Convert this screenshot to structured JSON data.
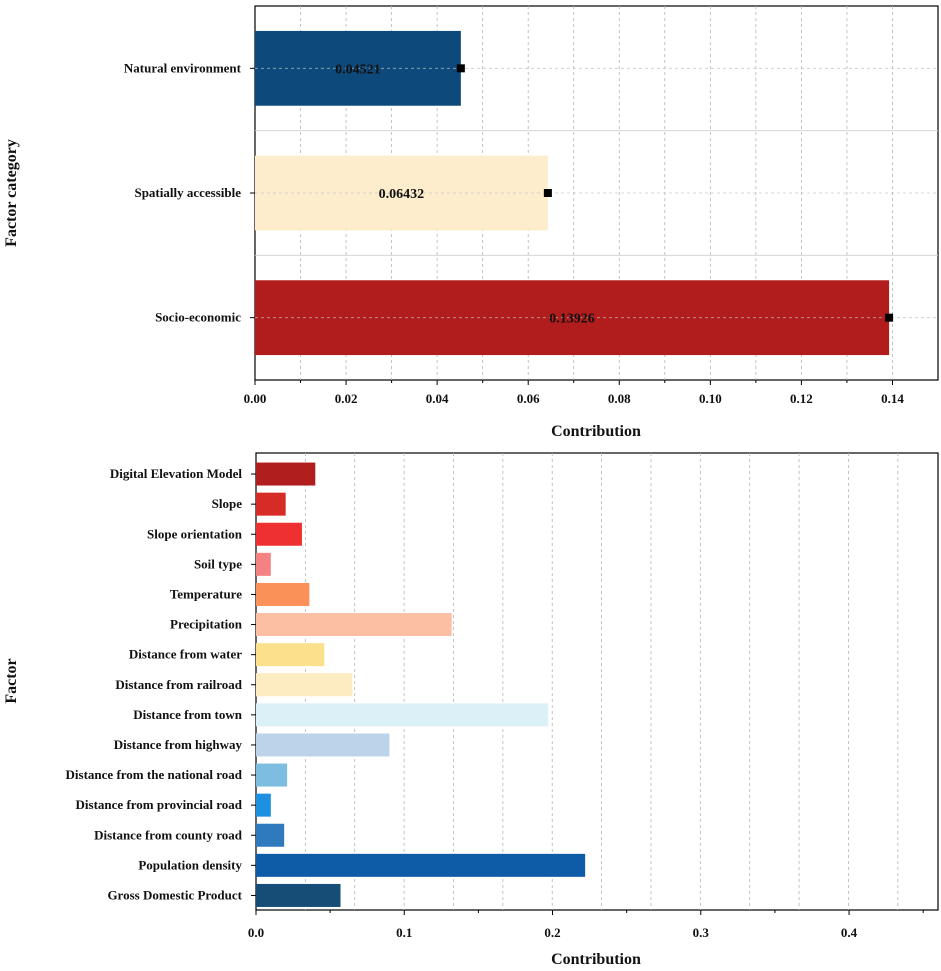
{
  "chart_data": [
    {
      "type": "bar",
      "orientation": "horizontal",
      "title": "",
      "xlabel": "Contribution",
      "ylabel": "Factor category",
      "xlim": [
        0,
        0.15
      ],
      "xticks": [
        "0.00",
        "0.02",
        "0.04",
        "0.06",
        "0.08",
        "0.10",
        "0.12",
        "0.14"
      ],
      "xtick_values": [
        0,
        0.02,
        0.04,
        0.06,
        0.08,
        0.1,
        0.12,
        0.14
      ],
      "grid": "vertical dashed",
      "categories": [
        "Natural environment",
        "Spatially accessible",
        "Socio-economic"
      ],
      "values": [
        0.04521,
        0.06432,
        0.13926
      ],
      "data_labels": [
        "0.04521",
        "0.06432",
        "0.13926"
      ],
      "colors": [
        "#0d4a7b",
        "#fdedcc",
        "#b11c1c"
      ],
      "marker": "square at bar end"
    },
    {
      "type": "bar",
      "orientation": "horizontal",
      "title": "",
      "xlabel": "Contribution",
      "ylabel": "Factor",
      "xlim": [
        0,
        0.46
      ],
      "xticks": [
        "0.0",
        "0.1",
        "0.2",
        "0.3",
        "0.4"
      ],
      "xtick_values": [
        0,
        0.1,
        0.2,
        0.3,
        0.4
      ],
      "grid": "vertical dashed",
      "categories": [
        "Digital Elevation Model",
        "Slope",
        "Slope orientation",
        "Soil type",
        "Temperature",
        "Precipitation",
        "Distance from water",
        "Distance from railroad",
        "Distance from town",
        "Distance from highway",
        "Distance from the national road",
        "Distance from provincial road",
        "Distance from county road",
        "Population density",
        "Gross Domestic Product"
      ],
      "values": [
        0.04,
        0.02,
        0.031,
        0.01,
        0.036,
        0.132,
        0.046,
        0.065,
        0.197,
        0.09,
        0.021,
        0.01,
        0.019,
        0.222,
        0.057
      ],
      "colors": [
        "#b11e1e",
        "#d62b27",
        "#ef3030",
        "#f58282",
        "#f99158",
        "#fcbfa4",
        "#fde08c",
        "#fdebc1",
        "#dcf0f7",
        "#bcd3ea",
        "#7dbde0",
        "#1e90e0",
        "#2f79bd",
        "#0e5ba8",
        "#154d76"
      ]
    }
  ]
}
